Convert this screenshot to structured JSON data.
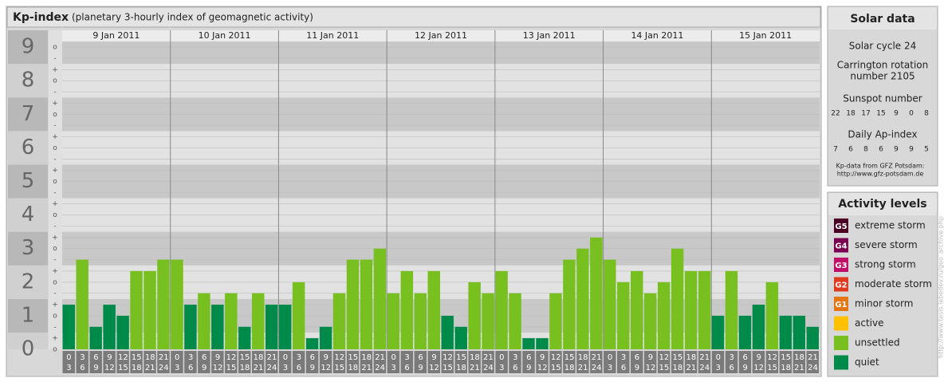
{
  "chart_data": {
    "type": "bar",
    "title": "Kp-index",
    "subtitle": "(planetary 3-hourly index of geomagnetic activity)",
    "days": [
      "9 Jan 2011",
      "10 Jan 2011",
      "11 Jan 2011",
      "12 Jan 2011",
      "13 Jan 2011",
      "14 Jan 2011",
      "15 Jan 2011"
    ],
    "hours": [
      [
        "0",
        "3"
      ],
      [
        "3",
        "6"
      ],
      [
        "6",
        "9"
      ],
      [
        "9",
        "12"
      ],
      [
        "12",
        "15"
      ],
      [
        "15",
        "18"
      ],
      [
        "18",
        "21"
      ],
      [
        "21",
        "24"
      ]
    ],
    "values": [
      1.33,
      2.67,
      0.67,
      1.33,
      1,
      2.33,
      2.33,
      2.67,
      2.67,
      1.33,
      1.67,
      1.33,
      1.67,
      0.67,
      1.67,
      1.33,
      1.33,
      2,
      0.33,
      0.67,
      1.67,
      2.67,
      2.67,
      3,
      1.67,
      2.33,
      1.67,
      2.33,
      1,
      0.67,
      2,
      1.67,
      2.33,
      1.67,
      0.33,
      0.33,
      1.67,
      2.67,
      3,
      3.33,
      2.67,
      2,
      2.33,
      1.67,
      2,
      3,
      2.33,
      2.33,
      1,
      2.33,
      1,
      1.33,
      2,
      1,
      1,
      0.67
    ],
    "colors": [
      "#008a4a",
      "#77c020",
      "#008a4a",
      "#008a4a",
      "#008a4a",
      "#77c020",
      "#77c020",
      "#77c020",
      "#77c020",
      "#008a4a",
      "#77c020",
      "#008a4a",
      "#77c020",
      "#008a4a",
      "#77c020",
      "#008a4a",
      "#008a4a",
      "#77c020",
      "#008a4a",
      "#008a4a",
      "#77c020",
      "#77c020",
      "#77c020",
      "#77c020",
      "#77c020",
      "#77c020",
      "#77c020",
      "#77c020",
      "#008a4a",
      "#008a4a",
      "#77c020",
      "#77c020",
      "#77c020",
      "#77c020",
      "#008a4a",
      "#008a4a",
      "#77c020",
      "#77c020",
      "#77c020",
      "#77c020",
      "#77c020",
      "#77c020",
      "#77c020",
      "#77c020",
      "#77c020",
      "#77c020",
      "#77c020",
      "#77c020",
      "#008a4a",
      "#77c020",
      "#008a4a",
      "#008a4a",
      "#77c020",
      "#008a4a",
      "#008a4a",
      "#008a4a"
    ],
    "ylim": [
      0,
      9.5
    ],
    "yticks": [
      0,
      1,
      2,
      3,
      4,
      5,
      6,
      7,
      8,
      9
    ],
    "yminorticks": [
      {
        "value": 0,
        "label": "o"
      },
      {
        "value": 0.33,
        "label": "+"
      },
      {
        "value": 0.67,
        "label": "-"
      },
      {
        "value": 1,
        "label": "o"
      },
      {
        "value": 1.33,
        "label": "+"
      },
      {
        "value": 1.67,
        "label": "-"
      },
      {
        "value": 2,
        "label": "o"
      },
      {
        "value": 2.33,
        "label": "+"
      },
      {
        "value": 2.67,
        "label": "-"
      },
      {
        "value": 3,
        "label": "o"
      },
      {
        "value": 3.33,
        "label": "+"
      },
      {
        "value": 3.67,
        "label": "-"
      },
      {
        "value": 4,
        "label": "o"
      },
      {
        "value": 4.33,
        "label": "+"
      },
      {
        "value": 4.67,
        "label": "-"
      },
      {
        "value": 5,
        "label": "o"
      },
      {
        "value": 5.33,
        "label": "+"
      },
      {
        "value": 5.67,
        "label": "-"
      },
      {
        "value": 6,
        "label": "o"
      },
      {
        "value": 6.33,
        "label": "+"
      },
      {
        "value": 6.67,
        "label": "-"
      },
      {
        "value": 7,
        "label": "o"
      },
      {
        "value": 7.33,
        "label": "+"
      },
      {
        "value": 7.67,
        "label": "-"
      },
      {
        "value": 8,
        "label": "o"
      },
      {
        "value": 8.33,
        "label": "+"
      },
      {
        "value": 8.67,
        "label": "-"
      },
      {
        "value": 9,
        "label": "o"
      }
    ],
    "grid": true
  },
  "solar_data": {
    "title": "Solar data",
    "cycle": "Solar cycle 24",
    "carrington": [
      "Carrington rotation",
      "number 2105"
    ],
    "sunspot_title": "Sunspot number",
    "sunspot": [
      22,
      18,
      17,
      15,
      9,
      0,
      8
    ],
    "ap_title": "Daily Ap-index",
    "ap": [
      7,
      6,
      8,
      6,
      9,
      9,
      5
    ],
    "source": [
      "Kp-data from GFZ Potsdam:",
      "http://www.gfz-potsdam.de"
    ]
  },
  "activity_levels": {
    "title": "Activity levels",
    "items": [
      {
        "code": "G5",
        "label": "extreme storm",
        "color": "#4a0024"
      },
      {
        "code": "G4",
        "label": "severe storm",
        "color": "#7a0050"
      },
      {
        "code": "G3",
        "label": "strong storm",
        "color": "#c0106a"
      },
      {
        "code": "G2",
        "label": "moderate storm",
        "color": "#e03a20"
      },
      {
        "code": "G1",
        "label": "minor storm",
        "color": "#e57614"
      },
      {
        "code": null,
        "label": "active",
        "color": "#ffc000"
      },
      {
        "code": null,
        "label": "unsettled",
        "color": "#77c020"
      },
      {
        "code": null,
        "label": "quiet",
        "color": "#008a4a"
      }
    ]
  },
  "side_url": "http://www.tesis.lebedev.ru/geo_archive.php"
}
